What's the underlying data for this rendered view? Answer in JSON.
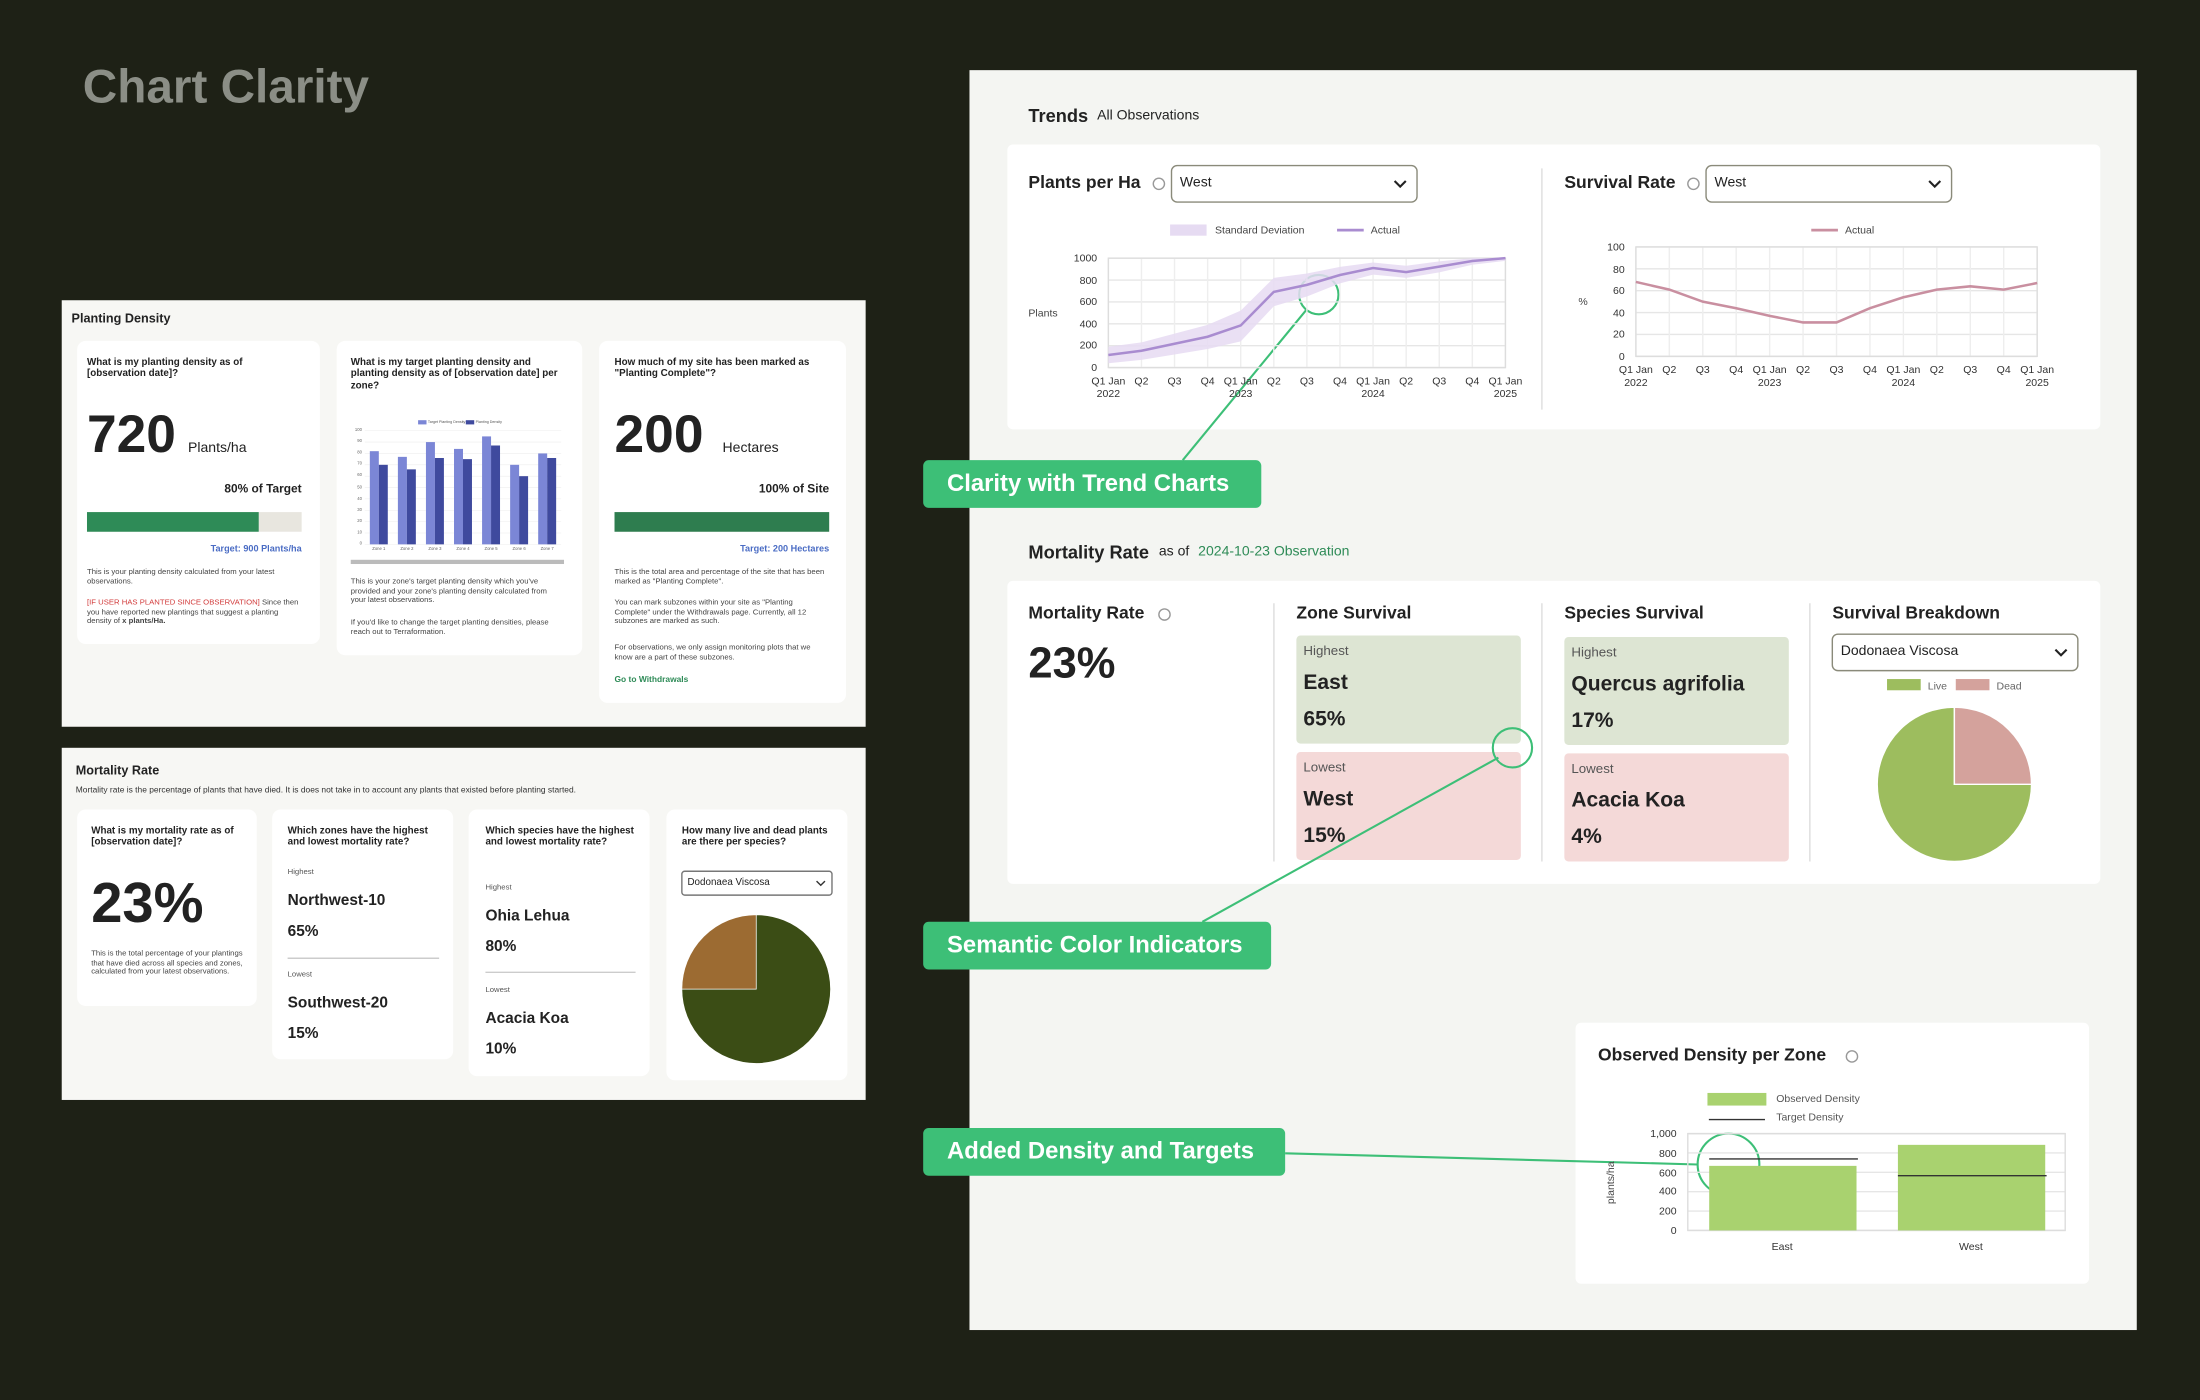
{
  "header": {
    "title": "Chart Clarity"
  },
  "planting_density": {
    "title": "Planting Density",
    "density_card": {
      "question": "What is my planting density as of [observation date]?",
      "value": "720",
      "unit": "Plants/ha",
      "progress_label": "80% of Target",
      "progress": 80,
      "target": "Target: 900 Plants/ha",
      "description": "This is your planting density calculated from your latest observations.",
      "warning": "[IF USER HAS PLANTED SINCE OBSERVATION]",
      "warning_text": "Since then you have reported new plantings that suggest a planting density of",
      "warning_value": "x plants/Ha."
    },
    "zone_card": {
      "question": "What is my target planting density and planting density as of [observation date] per zone?",
      "chart": {
        "type": "bar",
        "categories": [
          "Zone 1",
          "Zone 2",
          "Zone 3",
          "Zone 4",
          "Zone 5",
          "Zone 6",
          "Zone 7"
        ],
        "series": [
          {
            "name": "Target Planting Density",
            "color": "#7b86d6",
            "values": [
              82,
              77,
              90,
              84,
              95,
              70,
              80
            ]
          },
          {
            "name": "Planting Density",
            "color": "#3f4a9e",
            "values": [
              70,
              66,
              76,
              75,
              87,
              60,
              76
            ]
          }
        ],
        "ylim": [
          0,
          100
        ],
        "yticks": [
          0,
          10,
          20,
          30,
          40,
          50,
          60,
          70,
          80,
          90,
          100
        ]
      },
      "description": "This is your zone's target planting density which you've provided and your zone's planting density calculated from your latest observations.",
      "contact": "If you'd like to change the target planting densities, please reach out to Terraformation."
    },
    "site_card": {
      "question": "How much of my site has been marked as \"Planting Complete\"?",
      "value": "200",
      "unit": "Hectares",
      "progress_label": "100% of Site",
      "progress": 100,
      "target": "Target: 200 Hectares",
      "descriptions": [
        "This is the total area and percentage of the site that has been marked as \"Planting Complete\".",
        "You can mark subzones within your site as \"Planting Complete\" under the Withdrawals page. Currently, all 12 subzones are marked as such.",
        "For observations, we only assign monitoring plots that we know are a part of these subzones."
      ],
      "link": "Go to Withdrawals"
    }
  },
  "mortality_overview": {
    "title": "Mortality Rate",
    "subtitle": "Mortality rate is the percentage of plants that have died. It is does not take in to account any plants that existed before planting started.",
    "rate_card": {
      "question": "What is my mortality rate as of [observation date]?",
      "value": "23%",
      "description": "This is the total percentage of your plantings that have died across all species and zones, calculated from your latest observations."
    },
    "zone_card": {
      "question": "Which zones have the highest and lowest mortality rate?",
      "highest_label": "Highest",
      "highest_name": "Northwest-10",
      "highest_value": "65%",
      "lowest_label": "Lowest",
      "lowest_name": "Southwest-20",
      "lowest_value": "15%"
    },
    "species_card": {
      "question": "Which species have the highest and lowest mortality rate?",
      "highest_label": "Highest",
      "highest_name": "Ohia Lehua",
      "highest_value": "80%",
      "lowest_label": "Lowest",
      "lowest_name": "Acacia Koa",
      "lowest_value": "10%"
    },
    "breakdown_card": {
      "question": "How many live and dead plants are there per species?",
      "select": "Dodonaea Viscosa",
      "chart": {
        "type": "pie",
        "values": [
          75,
          25
        ],
        "colors": [
          "#3b4d15",
          "#9c6b32"
        ]
      }
    }
  },
  "trends": {
    "title": "Trends",
    "subtitle": "All Observations",
    "plants_chart": {
      "type": "line",
      "title": "Plants per Ha",
      "select": "West",
      "y_label": "Plants",
      "categories": [
        "Q1 Jan 2022",
        "Q2",
        "Q3",
        "Q4",
        "Q1 Jan 2023",
        "Q2",
        "Q3",
        "Q4",
        "Q1 Jan 2024",
        "Q2",
        "Q3",
        "Q4",
        "Q1 Jan 2025"
      ],
      "band": {
        "name": "Standard Deviation",
        "color": "#e6dbf2",
        "lower": [
          40,
          70,
          120,
          170,
          240,
          560,
          650,
          770,
          850,
          820,
          870,
          940,
          975
        ],
        "upper": [
          190,
          230,
          310,
          390,
          520,
          820,
          860,
          920,
          960,
          930,
          970,
          1000,
          1000
        ]
      },
      "series": [
        {
          "name": "Actual",
          "color": "#a98cd0",
          "values": [
            115,
            154,
            218,
            282,
            385,
            692,
            756,
            846,
            910,
            872,
            923,
            974,
            1000
          ]
        }
      ],
      "ylim": [
        0,
        1000
      ],
      "yticks": [
        0,
        200,
        400,
        600,
        800,
        1000
      ],
      "grid": true
    },
    "survival_chart": {
      "type": "line",
      "title": "Survival Rate",
      "select": "West",
      "y_label": "%",
      "categories": [
        "Q1 Jan 2022",
        "Q2",
        "Q3",
        "Q4",
        "Q1 Jan 2023",
        "Q2",
        "Q3",
        "Q4",
        "Q1 Jan 2024",
        "Q2",
        "Q3",
        "Q4",
        "Q1 Jan 2025"
      ],
      "series": [
        {
          "name": "Actual",
          "color": "#c98fa0",
          "values": [
            68,
            61,
            50,
            44,
            37,
            31,
            31,
            44,
            54,
            61,
            64,
            61,
            67
          ]
        }
      ],
      "ylim": [
        0,
        100
      ],
      "yticks": [
        0,
        20,
        40,
        60,
        80,
        100
      ],
      "grid": true
    }
  },
  "mortality": {
    "title": "Mortality Rate",
    "as_of": "as of",
    "observation": "2024-10-23 Observation",
    "rate": {
      "title": "Mortality Rate",
      "value": "23%"
    },
    "zone_survival": {
      "title": "Zone Survival",
      "highest_label": "Highest",
      "highest_name": "East",
      "highest_value": "65%",
      "lowest_label": "Lowest",
      "lowest_name": "West",
      "lowest_value": "15%"
    },
    "species_survival": {
      "title": "Species Survival",
      "highest_label": "Highest",
      "highest_name": "Quercus agrifolia",
      "highest_value": "17%",
      "lowest_label": "Lowest",
      "lowest_name": "Acacia Koa",
      "lowest_value": "4%"
    },
    "breakdown": {
      "title": "Survival Breakdown",
      "select": "Dodonaea Viscosa",
      "chart": {
        "type": "pie",
        "series": [
          {
            "name": "Live",
            "color": "#9dbd5e",
            "value": 75
          },
          {
            "name": "Dead",
            "color": "#d4a29c",
            "value": 25
          }
        ]
      }
    }
  },
  "density": {
    "type": "bar",
    "title": "Observed Density per Zone",
    "y_label": "plants/ha",
    "categories": [
      "East",
      "West"
    ],
    "series": [
      {
        "name": "Observed Density",
        "color": "#a9d26f",
        "values": [
          667,
          884
        ]
      },
      {
        "name": "Target Density",
        "color": "#333333",
        "values": [
          739,
          565
        ]
      }
    ],
    "ylim": [
      0,
      1000
    ],
    "yticks": [
      0,
      200,
      400,
      600,
      800,
      {
        "value": 1000,
        "label": "1,000"
      }
    ],
    "grid": true
  },
  "callouts": [
    "Clarity with Trend Charts",
    "Semantic Color Indicators",
    "Added Density and Targets"
  ]
}
